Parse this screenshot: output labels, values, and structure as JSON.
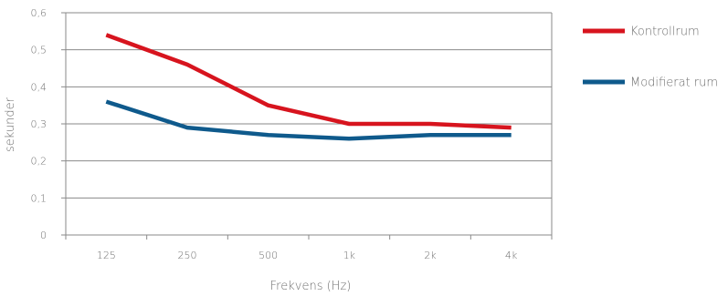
{
  "chart_data": {
    "type": "line",
    "categories": [
      "125",
      "250",
      "500",
      "1k",
      "2k",
      "4k"
    ],
    "series": [
      {
        "name": "Kontrollrum",
        "values": [
          0.54,
          0.46,
          0.35,
          0.3,
          0.3,
          0.29
        ],
        "color": "#d7141e"
      },
      {
        "name": "Modifierat rum",
        "values": [
          0.36,
          0.29,
          0.27,
          0.26,
          0.27,
          0.27
        ],
        "color": "#0f5a8c"
      }
    ],
    "xlabel": "Frekvens (Hz)",
    "ylabel": "sekunder",
    "ylim": [
      0,
      0.6
    ],
    "yticks": [
      0,
      0.1,
      0.2,
      0.3,
      0.4,
      0.5,
      0.6
    ],
    "ytick_labels": [
      "0",
      "0,1",
      "0,2",
      "0,3",
      "0,4",
      "0,5",
      "0,6"
    ],
    "grid": "horizontal",
    "legend": "right"
  }
}
